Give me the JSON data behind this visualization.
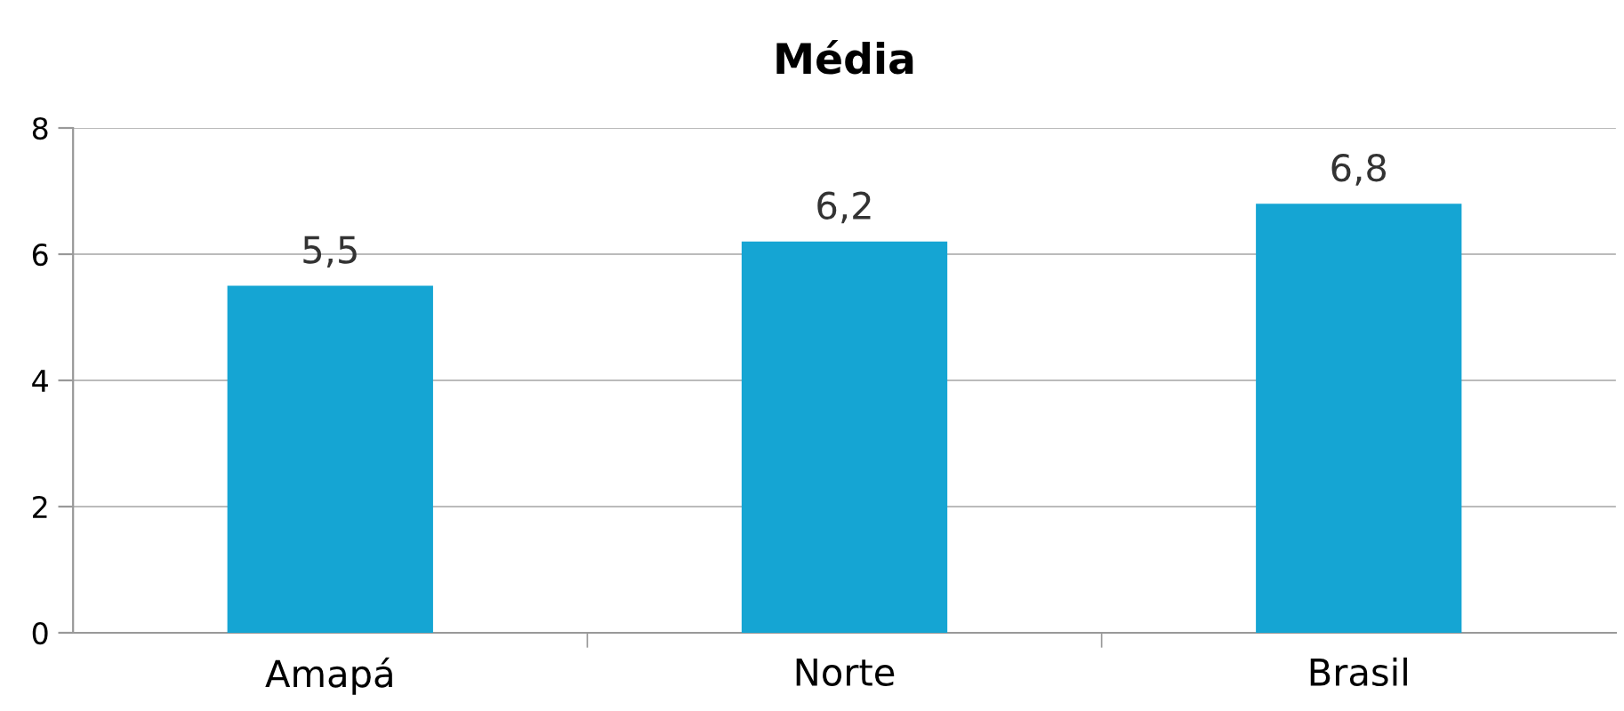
{
  "chart_data": {
    "type": "bar",
    "title": "Média",
    "categories": [
      "Amapá",
      "Norte",
      "Brasil"
    ],
    "values": [
      5.5,
      6.2,
      6.8
    ],
    "value_labels": [
      "5,5",
      "6,2",
      "6,8"
    ],
    "color": "#15a5d3",
    "ylim": [
      0,
      8
    ],
    "yticks": [
      0,
      2,
      4,
      6,
      8
    ],
    "grid": "y"
  }
}
